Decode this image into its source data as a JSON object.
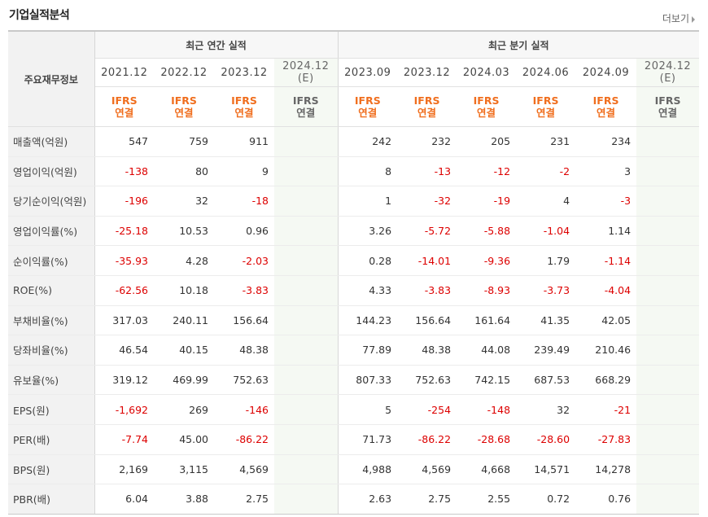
{
  "title": "기업실적분석",
  "more_label": "더보기",
  "header": {
    "row_label": "주요재무정보",
    "annual_group": "최근 연간 실적",
    "quarter_group": "최근 분기 실적",
    "periods": [
      "2021.12",
      "2022.12",
      "2023.12",
      "2024.12\n(E)",
      "2023.09",
      "2023.12",
      "2024.03",
      "2024.06",
      "2024.09",
      "2024.12\n(E)"
    ],
    "standard": "IFRS\n연결"
  },
  "rows": [
    {
      "label": "매출액(억원)",
      "values": [
        "547",
        "759",
        "911",
        "",
        "242",
        "232",
        "205",
        "231",
        "234",
        ""
      ]
    },
    {
      "label": "영업이익(억원)",
      "values": [
        "-138",
        "80",
        "9",
        "",
        "8",
        "-13",
        "-12",
        "-2",
        "3",
        ""
      ]
    },
    {
      "label": "당기순이익(억원)",
      "values": [
        "-196",
        "32",
        "-18",
        "",
        "1",
        "-32",
        "-19",
        "4",
        "-3",
        ""
      ]
    },
    {
      "label": "영업이익률(%)",
      "values": [
        "-25.18",
        "10.53",
        "0.96",
        "",
        "3.26",
        "-5.72",
        "-5.88",
        "-1.04",
        "1.14",
        ""
      ]
    },
    {
      "label": "순이익률(%)",
      "values": [
        "-35.93",
        "4.28",
        "-2.03",
        "",
        "0.28",
        "-14.01",
        "-9.36",
        "1.79",
        "-1.14",
        ""
      ]
    },
    {
      "label": "ROE(%)",
      "values": [
        "-62.56",
        "10.18",
        "-3.83",
        "",
        "4.33",
        "-3.83",
        "-8.93",
        "-3.73",
        "-4.04",
        ""
      ]
    },
    {
      "label": "부채비율(%)",
      "values": [
        "317.03",
        "240.11",
        "156.64",
        "",
        "144.23",
        "156.64",
        "161.64",
        "41.35",
        "42.05",
        ""
      ]
    },
    {
      "label": "당좌비율(%)",
      "values": [
        "46.54",
        "40.15",
        "48.38",
        "",
        "77.89",
        "48.38",
        "44.08",
        "239.49",
        "210.46",
        ""
      ]
    },
    {
      "label": "유보율(%)",
      "values": [
        "319.12",
        "469.99",
        "752.63",
        "",
        "807.33",
        "752.63",
        "742.15",
        "687.53",
        "668.29",
        ""
      ]
    },
    {
      "label": "EPS(원)",
      "values": [
        "-1,692",
        "269",
        "-146",
        "",
        "5",
        "-254",
        "-148",
        "32",
        "-21",
        ""
      ]
    },
    {
      "label": "PER(배)",
      "values": [
        "-7.74",
        "45.00",
        "-86.22",
        "",
        "71.73",
        "-86.22",
        "-28.68",
        "-28.60",
        "-27.83",
        ""
      ]
    },
    {
      "label": "BPS(원)",
      "values": [
        "2,169",
        "3,115",
        "4,569",
        "",
        "4,988",
        "4,569",
        "4,668",
        "14,571",
        "14,278",
        ""
      ]
    },
    {
      "label": "PBR(배)",
      "values": [
        "6.04",
        "3.88",
        "2.75",
        "",
        "2.63",
        "2.75",
        "2.55",
        "0.72",
        "0.76",
        ""
      ]
    }
  ],
  "colors": {
    "negative": "#dd0000",
    "ifrs": "#f06e1e",
    "estimate_bg": "#f5f9f3"
  }
}
